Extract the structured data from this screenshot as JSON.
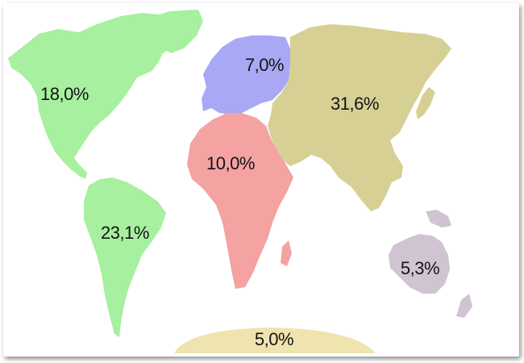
{
  "map": {
    "regions": [
      {
        "id": "north-america",
        "value": "18,0%",
        "color": "#a6f0a0"
      },
      {
        "id": "europe",
        "value": "7,0%",
        "color": "#a8a8f4"
      },
      {
        "id": "asia",
        "value": "31,6%",
        "color": "#d7d095"
      },
      {
        "id": "africa",
        "value": "10,0%",
        "color": "#f4a2a2"
      },
      {
        "id": "south-america",
        "value": "23,1%",
        "color": "#a6f0a0"
      },
      {
        "id": "oceania",
        "value": "5,3%",
        "color": "#d0c4d2"
      },
      {
        "id": "antarctica",
        "value": "5,0%",
        "color": "#efe3b0"
      }
    ]
  }
}
